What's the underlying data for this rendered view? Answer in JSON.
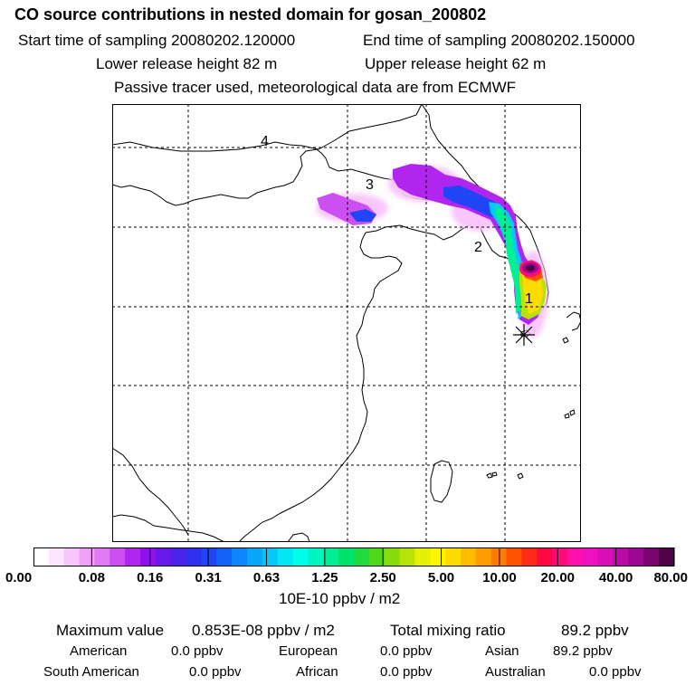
{
  "header": {
    "title": "CO  source contributions in nested domain for gosan_200802",
    "start_label": "Start time of sampling 20080202.120000",
    "end_label": "End time of sampling 20080202.150000",
    "lower_label": "Lower release height   82 m",
    "upper_label": "Upper release height   62 m",
    "note": "Passive tracer used, meteorological data are from ECMWF"
  },
  "map": {
    "region_labels": [
      "1",
      "2",
      "3",
      "4"
    ],
    "receptor_name": "gosan"
  },
  "colorbar": {
    "ticks": [
      "0.00",
      "0.08",
      "0.16",
      "0.31",
      "0.63",
      "1.25",
      "2.50",
      "5.00",
      "10.00",
      "20.00",
      "40.00",
      "80.00"
    ],
    "unit": "10E-10 ppbv / m2",
    "colors": [
      "#ffffff",
      "#fde6fd",
      "#f8c6fb",
      "#f0a0f8",
      "#e07af5",
      "#cc4ff2",
      "#b026ee",
      "#8e10ea",
      "#6a18e8",
      "#4a22ea",
      "#3030f0",
      "#1f45f5",
      "#1463f8",
      "#0d85fb",
      "#08a6fb",
      "#06c8fa",
      "#04e6f4",
      "#00fde9",
      "#00f5c0",
      "#00ee96",
      "#00e36a",
      "#1fdb3f",
      "#52d81a",
      "#86dc0c",
      "#b8e308",
      "#e6ef06",
      "#fbf500",
      "#ffdc00",
      "#ffbc00",
      "#ff9c00",
      "#ff7a00",
      "#ff5200",
      "#ff2a18",
      "#ff0a40",
      "#ff0a7a",
      "#ff10a8",
      "#f010c0",
      "#d80eb8",
      "#bc0aa8",
      "#9c0890",
      "#7a0470",
      "#4e0248"
    ]
  },
  "stats": {
    "max_label": "Maximum value",
    "max_value": "0.853E-08 ppbv / m2",
    "total_label": "Total mixing ratio",
    "total_value": "89.2 ppbv",
    "regions": [
      {
        "name": "American",
        "value": "0.0 ppbv"
      },
      {
        "name": "European",
        "value": "0.0 ppbv"
      },
      {
        "name": "Asian",
        "value": "89.2 ppbv"
      },
      {
        "name": "South American",
        "value": "0.0 ppbv"
      },
      {
        "name": "African",
        "value": "0.0 ppbv"
      },
      {
        "name": "Australian",
        "value": "0.0 ppbv"
      }
    ]
  }
}
